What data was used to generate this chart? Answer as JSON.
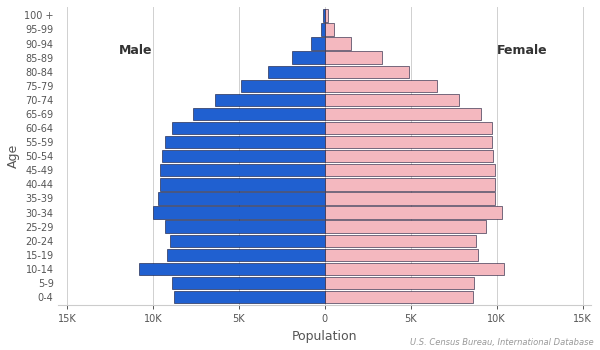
{
  "age_groups": [
    "0-4",
    "5-9",
    "10-14",
    "15-19",
    "20-24",
    "25-29",
    "30-34",
    "35-39",
    "40-44",
    "45-49",
    "50-54",
    "55-59",
    "60-64",
    "65-69",
    "70-74",
    "75-79",
    "80-84",
    "85-89",
    "90-94",
    "95-99",
    "100 +"
  ],
  "male": [
    8800,
    8900,
    10800,
    9200,
    9000,
    9300,
    10000,
    9700,
    9600,
    9600,
    9500,
    9300,
    8900,
    7700,
    6400,
    4900,
    3300,
    1900,
    820,
    250,
    80
  ],
  "female": [
    8600,
    8700,
    10400,
    8900,
    8800,
    9400,
    10300,
    9900,
    9900,
    9900,
    9800,
    9700,
    9700,
    9100,
    7800,
    6500,
    4900,
    3300,
    1500,
    520,
    170
  ],
  "male_color": "#2060d0",
  "female_color": "#f4b8bf",
  "bar_edgecolor": "#111133",
  "bar_edgewidth": 0.4,
  "xlim": 14000,
  "xticks": [
    -15000,
    -10000,
    -5000,
    0,
    5000,
    10000,
    15000
  ],
  "xticklabels": [
    "15K",
    "10K",
    "5K",
    "0",
    "5K",
    "10K",
    "15K"
  ],
  "xlabel": "Population",
  "ylabel": "Age",
  "male_label": "Male",
  "female_label": "Female",
  "source_text": "U.S. Census Bureau, International Database",
  "bg_color": "#ffffff",
  "grid_color": "#d0d0d0",
  "bar_height": 0.88,
  "label_fontsize": 9,
  "tick_fontsize": 7,
  "annot_fontsize": 9
}
